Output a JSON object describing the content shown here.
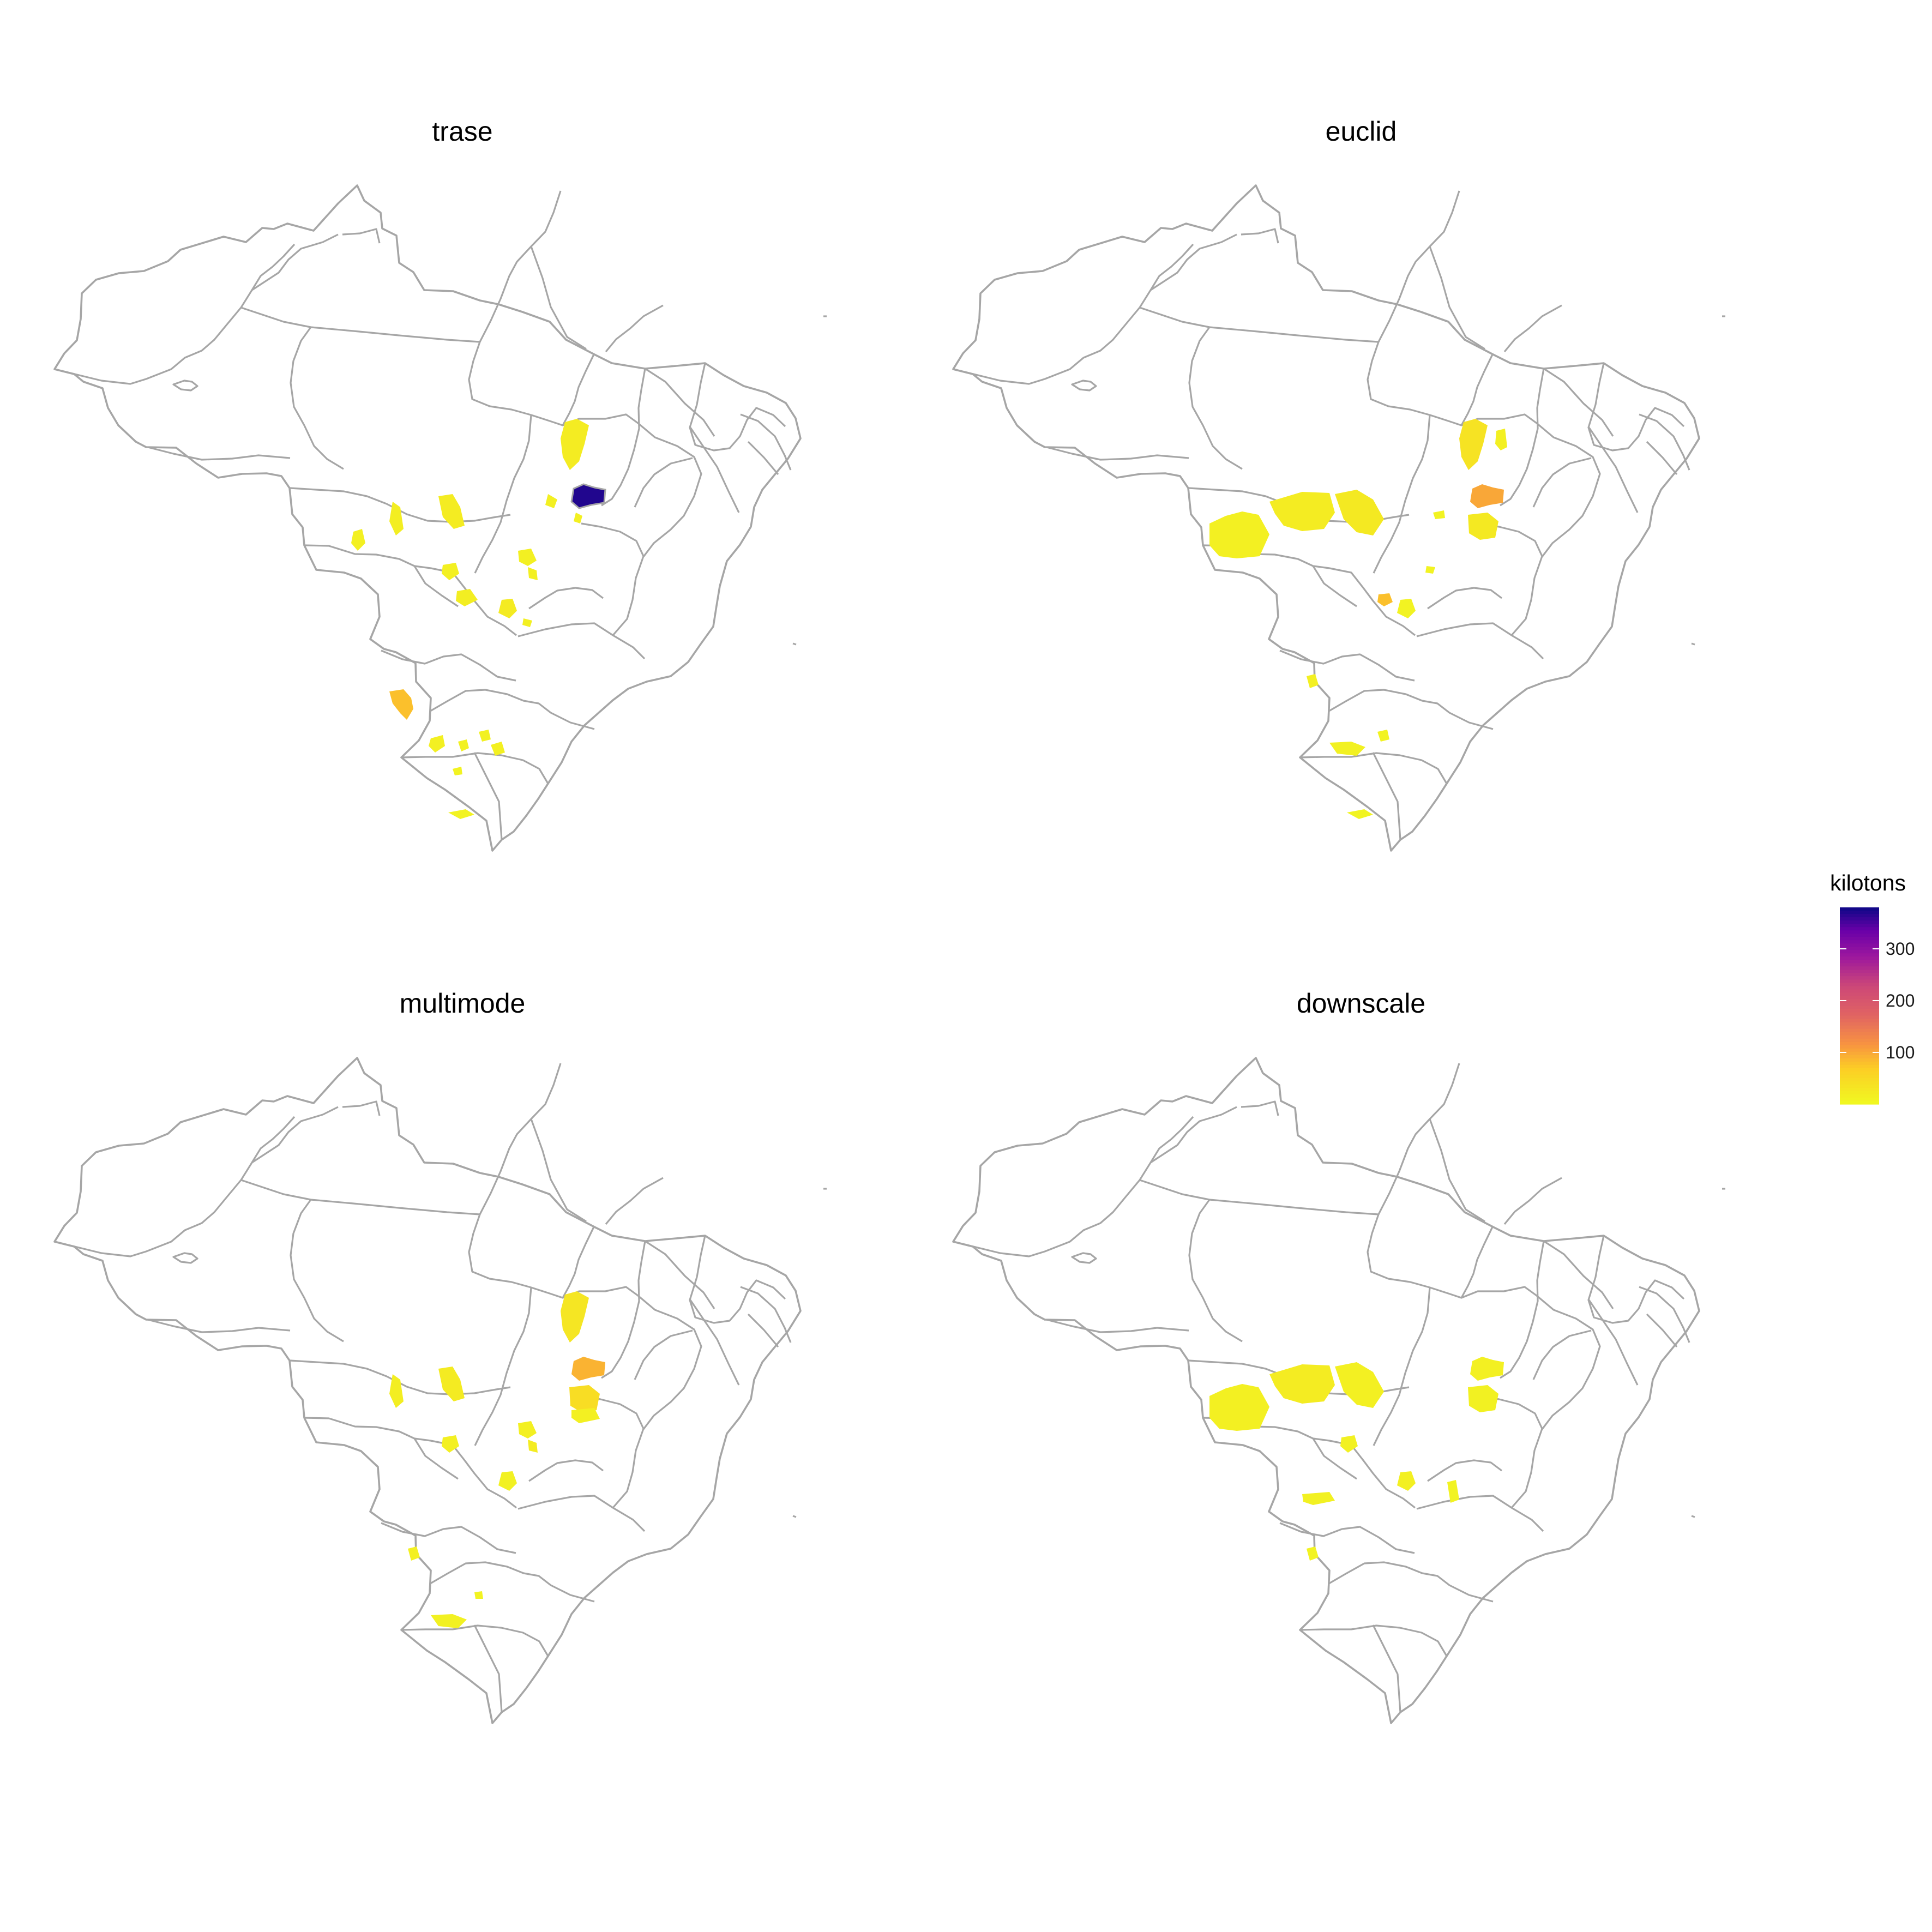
{
  "facets": [
    {
      "id": "trase",
      "title": "trase",
      "regions": [
        {
          "name": "tocantins-north",
          "value": 20
        },
        {
          "name": "tocantins-west-bank",
          "value": 15
        },
        {
          "name": "bahia-west-barreiras",
          "value": 370
        },
        {
          "name": "tocantins-south",
          "value": 15
        },
        {
          "name": "mato-grosso-northwest",
          "value": 15
        },
        {
          "name": "mato-grosso-north",
          "value": 18
        },
        {
          "name": "mato-grosso-northeast",
          "value": 20
        },
        {
          "name": "mato-grosso-south",
          "value": 15
        },
        {
          "name": "goias-north",
          "value": 15
        },
        {
          "name": "goias-center",
          "value": 15
        },
        {
          "name": "goias-southwest",
          "value": 18
        },
        {
          "name": "goias-south",
          "value": 22
        },
        {
          "name": "goias-southeast",
          "value": 15
        },
        {
          "name": "mato-grosso-do-sul-south",
          "value": 80
        },
        {
          "name": "parana-west-1",
          "value": 15
        },
        {
          "name": "parana-west-2",
          "value": 12
        },
        {
          "name": "parana-center",
          "value": 12
        },
        {
          "name": "parana-east",
          "value": 15
        },
        {
          "name": "parana-south",
          "value": 10
        },
        {
          "name": "rio-grande-do-sul-north",
          "value": 10
        }
      ]
    },
    {
      "id": "euclid",
      "title": "euclid",
      "regions": [
        {
          "name": "tocantins-north",
          "value": 35
        },
        {
          "name": "maranhao-south",
          "value": 15
        },
        {
          "name": "mato-grosso-west",
          "value": 15
        },
        {
          "name": "mato-grosso-center",
          "value": 20
        },
        {
          "name": "mato-grosso-east",
          "value": 25
        },
        {
          "name": "tocantins-east-small",
          "value": 10
        },
        {
          "name": "bahia-west-barreiras",
          "value": 100
        },
        {
          "name": "bahia-west-south",
          "value": 25
        },
        {
          "name": "tocantins-south-small",
          "value": 10
        },
        {
          "name": "goias-west",
          "value": 80
        },
        {
          "name": "goias-south",
          "value": 10
        },
        {
          "name": "mato-grosso-do-sul-center",
          "value": 15
        },
        {
          "name": "parana-west",
          "value": 12
        },
        {
          "name": "parana-center",
          "value": 10
        },
        {
          "name": "rio-grande-do-sul-north",
          "value": 8
        }
      ]
    },
    {
      "id": "multimode",
      "title": "multimode",
      "regions": [
        {
          "name": "tocantins-north",
          "value": 30
        },
        {
          "name": "mato-grosso-north",
          "value": 18
        },
        {
          "name": "mato-grosso-northeast",
          "value": 22
        },
        {
          "name": "bahia-west-barreiras",
          "value": 90
        },
        {
          "name": "bahia-west-south",
          "value": 45
        },
        {
          "name": "bahia-west-far-south",
          "value": 15
        },
        {
          "name": "mato-grosso-south",
          "value": 15
        },
        {
          "name": "goias-north",
          "value": 15
        },
        {
          "name": "goias-center",
          "value": 20
        },
        {
          "name": "goias-south",
          "value": 12
        },
        {
          "name": "mato-grosso-do-sul-center",
          "value": 15
        },
        {
          "name": "parana-north",
          "value": 10
        },
        {
          "name": "parana-west",
          "value": 12
        }
      ]
    },
    {
      "id": "downscale",
      "title": "downscale",
      "regions": [
        {
          "name": "mato-grosso-west",
          "value": 15
        },
        {
          "name": "mato-grosso-center",
          "value": 20
        },
        {
          "name": "mato-grosso-east",
          "value": 15
        },
        {
          "name": "mato-grosso-south",
          "value": 12
        },
        {
          "name": "bahia-west-barreiras",
          "value": 15
        },
        {
          "name": "bahia-west-south",
          "value": 12
        },
        {
          "name": "mato-grosso-do-sul-north",
          "value": 12
        },
        {
          "name": "goias-south",
          "value": 15
        },
        {
          "name": "goias-east",
          "value": 10
        },
        {
          "name": "mato-grosso-do-sul-center",
          "value": 10
        }
      ]
    }
  ],
  "legend": {
    "title": "kilotons",
    "ticks": [
      100,
      200,
      300
    ],
    "range": [
      0,
      380
    ],
    "colormap": "plasma"
  },
  "colors": {
    "outline": "#a6a6a6",
    "background": "#ffffff"
  }
}
